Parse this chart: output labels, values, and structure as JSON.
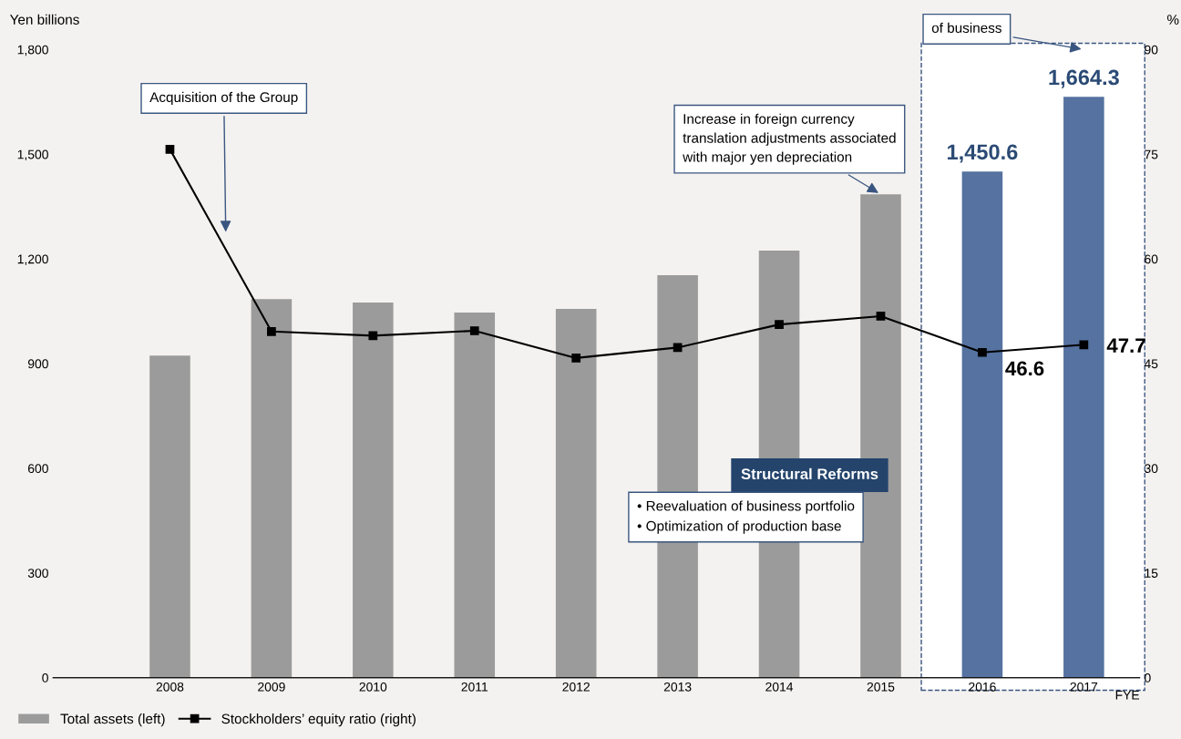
{
  "chart_data": {
    "type": "bar",
    "ylabel": "Yen billions",
    "y2label": "%",
    "xlabel": "FYE",
    "categories": [
      "2008",
      "2009",
      "2010",
      "2011",
      "2012",
      "2013",
      "2014",
      "2015",
      "2016",
      "2017"
    ],
    "series": [
      {
        "name": "Total assets (left)",
        "colors": [
          "#9b9b9b",
          "#9b9b9b",
          "#9b9b9b",
          "#9b9b9b",
          "#9b9b9b",
          "#9b9b9b",
          "#9b9b9b",
          "#9b9b9b",
          "#5572a0",
          "#5572a0"
        ],
        "values": [
          923,
          1085,
          1075,
          1046,
          1057,
          1153,
          1224,
          1385,
          1450.6,
          1664.3
        ],
        "value_labels": [
          null,
          null,
          null,
          null,
          null,
          null,
          null,
          null,
          "1,450.6",
          "1,664.3"
        ]
      },
      {
        "name": "Stockholders’ equity ratio (right)",
        "type": "line",
        "axis": "y2",
        "color": "#000000",
        "values": [
          75.7,
          49.6,
          49.0,
          49.7,
          45.8,
          47.3,
          50.6,
          51.8,
          46.6,
          47.7
        ],
        "value_labels": [
          null,
          null,
          null,
          null,
          null,
          null,
          null,
          null,
          "46.6",
          "47.7"
        ]
      }
    ],
    "ylim": [
      0,
      1800
    ],
    "yticks": [
      {
        "value": 0,
        "label": "0"
      },
      {
        "value": 300,
        "label": "300"
      },
      {
        "value": 600,
        "label": "600"
      },
      {
        "value": 900,
        "label": "900"
      },
      {
        "value": 1200,
        "label": "1,200"
      },
      {
        "value": 1500,
        "label": "1,500"
      },
      {
        "value": 1800,
        "label": "1,800"
      }
    ],
    "y2lim": [
      0,
      90
    ],
    "y2ticks": [
      0,
      15,
      30,
      45,
      60,
      75,
      90
    ],
    "marker": "square",
    "grid": false,
    "legend": "bottom left",
    "bands": [
      {
        "axis": "x",
        "from": "2016",
        "to": "2017",
        "color": "#ffffff"
      }
    ],
    "annotations": [
      "Acquisition of the Group",
      {
        "text": "Increase in foreign currency translation adjustments associated with major yen depreciation",
        "x": "2015",
        "y": 1385
      },
      "of business",
      "Structural Reforms",
      "• Reevaluation of business portfolio\n• Optimization of production base"
    ]
  }
}
